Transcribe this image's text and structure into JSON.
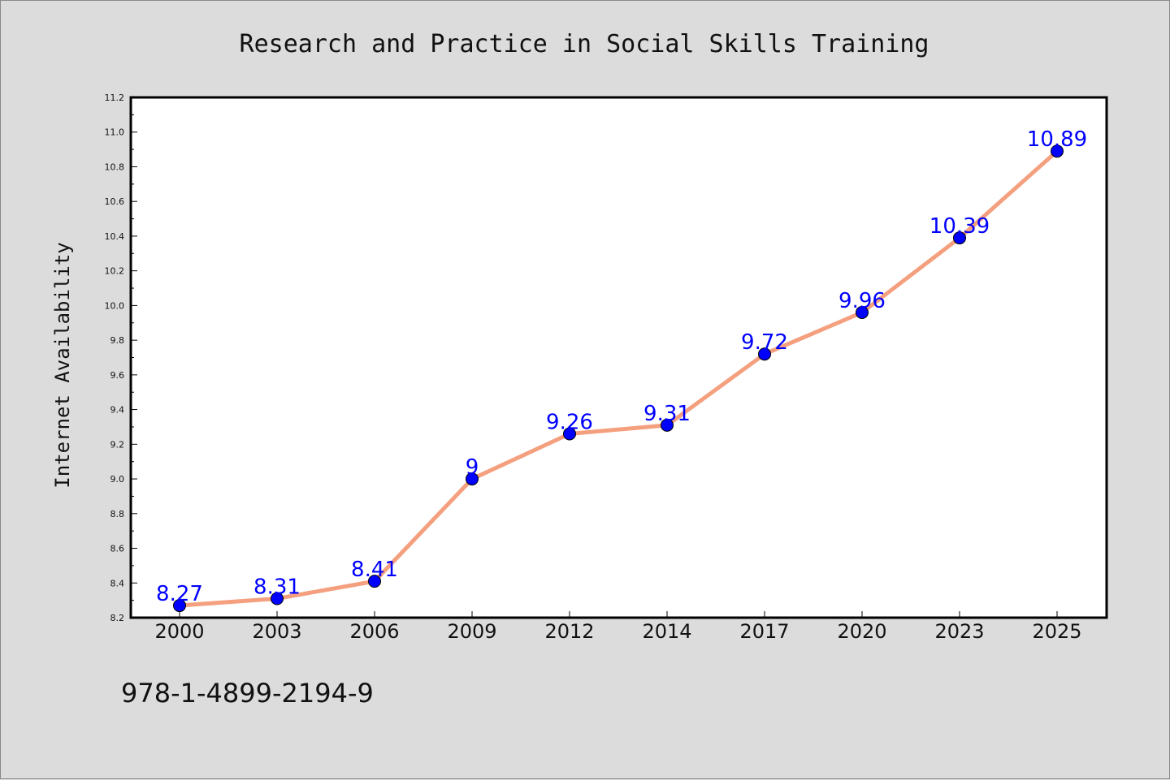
{
  "chart_data": {
    "type": "line",
    "title": "Research and Practice in Social Skills Training",
    "xlabel": "",
    "ylabel": "Internet Availability",
    "categories": [
      "2000",
      "2003",
      "2006",
      "2009",
      "2012",
      "2014",
      "2017",
      "2020",
      "2023",
      "2025"
    ],
    "series": [
      {
        "values": [
          8.27,
          8.31,
          8.41,
          9,
          9.26,
          9.31,
          9.72,
          9.96,
          10.39,
          10.89
        ],
        "data_labels": [
          "8.27",
          "8.31",
          "8.41",
          "9",
          "9.26",
          "9.31",
          "9.72",
          "9.96",
          "10.39",
          "10.89"
        ]
      }
    ],
    "ylim": [
      8.2,
      11.2
    ],
    "yticks": [
      "8.2",
      "8.4",
      "8.6",
      "8.8",
      "9.0",
      "9.2",
      "9.4",
      "9.6",
      "9.8",
      "10.0",
      "10.2",
      "10.4",
      "10.6",
      "10.8",
      "11.0",
      "11.2"
    ],
    "grid": false,
    "legend": "none"
  },
  "annotation": {
    "isbn": "978-1-4899-2194-9"
  },
  "colors": {
    "background": "#dcdcdc",
    "plot_area": "#ffffff",
    "line": "#f4a07f",
    "marker": "#0000ff",
    "data_label": "#0000ff"
  }
}
